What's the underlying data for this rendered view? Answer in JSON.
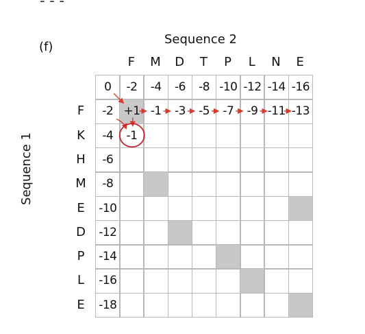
{
  "panel_label": "(f)",
  "header_fragment": "‐   ‐  ‐",
  "seq2_title": "Sequence 2",
  "seq1_title": "Sequence 1",
  "sequence2": [
    "F",
    "M",
    "D",
    "T",
    "P",
    "L",
    "N",
    "E"
  ],
  "sequence1": [
    "F",
    "K",
    "H",
    "M",
    "E",
    "D",
    "P",
    "L",
    "E"
  ],
  "grid": [
    [
      "0",
      "-2",
      "-4",
      "-6",
      "-8",
      "-10",
      "-12",
      "-14",
      "-16"
    ],
    [
      "-2",
      "+1",
      "-1",
      "-3",
      "-5",
      "-7",
      "-9",
      "-11",
      "-13"
    ],
    [
      "-4",
      "-1",
      "",
      "",
      "",
      "",
      "",
      "",
      ""
    ],
    [
      "-6",
      "",
      "",
      "",
      "",
      "",
      "",
      "",
      ""
    ],
    [
      "-8",
      "",
      "",
      "",
      "",
      "",
      "",
      "",
      ""
    ],
    [
      "-10",
      "",
      "",
      "",
      "",
      "",
      "",
      "",
      ""
    ],
    [
      "-12",
      "",
      "",
      "",
      "",
      "",
      "",
      "",
      ""
    ],
    [
      "-14",
      "",
      "",
      "",
      "",
      "",
      "",
      "",
      ""
    ],
    [
      "-16",
      "",
      "",
      "",
      "",
      "",
      "",
      "",
      ""
    ],
    [
      "-18",
      "",
      "",
      "",
      "",
      "",
      "",
      "",
      ""
    ]
  ],
  "match_cells": [
    [
      1,
      1
    ],
    [
      4,
      2
    ],
    [
      5,
      8
    ],
    [
      6,
      3
    ],
    [
      7,
      5
    ],
    [
      8,
      6
    ],
    [
      9,
      8
    ]
  ],
  "highlight_cell": [
    2,
    1
  ],
  "arrow_color": "#d83a2e",
  "circle_color": "#c8202a"
}
